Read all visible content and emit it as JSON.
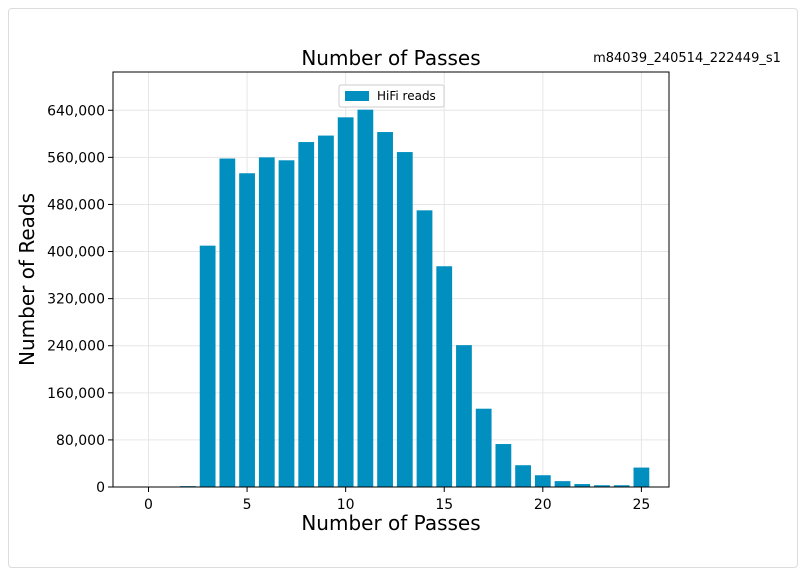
{
  "sample_id": "m84039_240514_222449_s1",
  "chart_data": {
    "type": "bar",
    "title": "Number of Passes",
    "xlabel": "Number of Passes",
    "ylabel": "Number of Reads",
    "x": [
      0,
      1,
      2,
      3,
      4,
      5,
      6,
      7,
      8,
      9,
      10,
      11,
      12,
      13,
      14,
      15,
      16,
      17,
      18,
      19,
      20,
      21,
      22,
      23,
      24,
      25
    ],
    "series": [
      {
        "name": "HiFi reads",
        "color": "#008fbf",
        "values": [
          0,
          0,
          1500,
          410000,
          558000,
          533000,
          560000,
          555000,
          586000,
          597000,
          628000,
          641000,
          603000,
          569000,
          470000,
          375000,
          241000,
          133000,
          73000,
          37000,
          20000,
          10000,
          5000,
          3000,
          3000,
          33000
        ]
      }
    ],
    "xlim": [
      -1.8,
      26.4
    ],
    "ylim": [
      0,
      705000
    ],
    "xticks": [
      0,
      5,
      10,
      15,
      20,
      25
    ],
    "xtick_labels": [
      "0",
      "5",
      "10",
      "15",
      "20",
      "25"
    ],
    "yticks": [
      0,
      80000,
      160000,
      240000,
      320000,
      400000,
      480000,
      560000,
      640000
    ],
    "ytick_labels": [
      "0",
      "80,000",
      "160,000",
      "240,000",
      "320,000",
      "400,000",
      "480,000",
      "560,000",
      "640,000"
    ],
    "grid": true,
    "legend_position": "top-center"
  }
}
